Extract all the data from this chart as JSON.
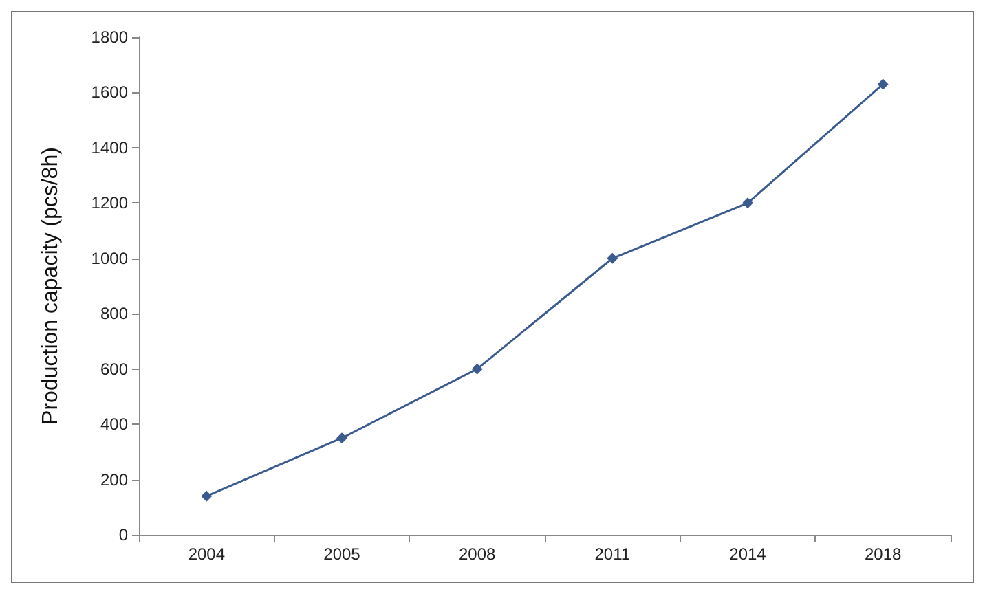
{
  "chart_data": {
    "type": "line",
    "ylabel": "Production capacity (pcs/8h)",
    "categories": [
      "2004",
      "2005",
      "2008",
      "2011",
      "2014",
      "2018"
    ],
    "series": [
      {
        "color": "#3b5a8e",
        "values": [
          140,
          350,
          600,
          1000,
          1200,
          1630
        ]
      }
    ],
    "ylim": [
      0,
      1800
    ],
    "yticks": [
      0,
      200,
      400,
      600,
      800,
      1000,
      1200,
      1400,
      1600,
      1800
    ],
    "grid": false,
    "marker": "diamond",
    "line_style": "solid"
  }
}
